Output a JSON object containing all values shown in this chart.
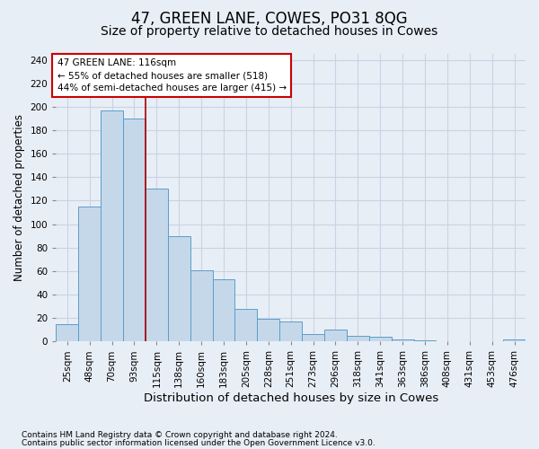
{
  "title": "47, GREEN LANE, COWES, PO31 8QG",
  "subtitle": "Size of property relative to detached houses in Cowes",
  "xlabel": "Distribution of detached houses by size in Cowes",
  "ylabel": "Number of detached properties",
  "categories": [
    "25sqm",
    "48sqm",
    "70sqm",
    "93sqm",
    "115sqm",
    "138sqm",
    "160sqm",
    "183sqm",
    "205sqm",
    "228sqm",
    "251sqm",
    "273sqm",
    "296sqm",
    "318sqm",
    "341sqm",
    "363sqm",
    "386sqm",
    "408sqm",
    "431sqm",
    "453sqm",
    "476sqm"
  ],
  "values": [
    15,
    115,
    197,
    190,
    130,
    90,
    61,
    53,
    28,
    19,
    17,
    6,
    10,
    5,
    4,
    2,
    1,
    0,
    0,
    0,
    2
  ],
  "bar_color": "#c5d8ea",
  "bar_edge_color": "#5b9dc9",
  "bar_linewidth": 0.7,
  "vline_color": "#aa0000",
  "annotation_line1": "47 GREEN LANE: 116sqm",
  "annotation_line2": "← 55% of detached houses are smaller (518)",
  "annotation_line3": "44% of semi-detached houses are larger (415) →",
  "annotation_box_facecolor": "#ffffff",
  "annotation_box_edgecolor": "#cc0000",
  "grid_color": "#c8d4e4",
  "background_color": "#e8eef6",
  "ylim": [
    0,
    245
  ],
  "yticks": [
    0,
    20,
    40,
    60,
    80,
    100,
    120,
    140,
    160,
    180,
    200,
    220,
    240
  ],
  "footnote1": "Contains HM Land Registry data © Crown copyright and database right 2024.",
  "footnote2": "Contains public sector information licensed under the Open Government Licence v3.0.",
  "title_fontsize": 12,
  "subtitle_fontsize": 10,
  "xlabel_fontsize": 9.5,
  "ylabel_fontsize": 8.5,
  "tick_fontsize": 7.5,
  "annot_fontsize": 7.5,
  "footnote_fontsize": 6.5
}
